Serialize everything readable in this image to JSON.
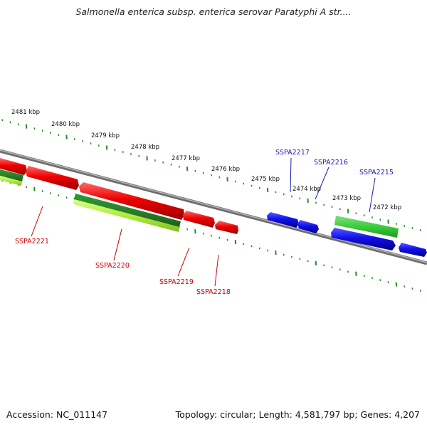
{
  "title": "Salmonella enterica subsp. enterica serovar Paratyphi A str....",
  "accession": "Accession: NC_011147",
  "summary": "Topology: circular; Length: 4,581,797 bp; Genes: 4,207",
  "colors": {
    "backbone": "#8a8a8a",
    "ticks": "#2a8a2a",
    "forward_gene": "#e00000",
    "reverse_gene": "#1414e0",
    "green_track": "#3cc43c",
    "light_green_track": "#a8ec40",
    "label_red": "#cc0000",
    "label_blue": "#1a1aaa"
  },
  "scale_labels": [
    "2481 kbp",
    "2480 kbp",
    "2479 kbp",
    "2478 kbp",
    "2477 kbp",
    "2476 kbp",
    "2475 kbp",
    "2474 kbp",
    "2473 kbp",
    "2472 kbp"
  ],
  "gene_labels": {
    "ssp2221": "SSPA2221",
    "ssp2220": "SSPA2220",
    "ssp2219": "SSPA2219",
    "ssp2218": "SSPA2218",
    "ssp2217": "SSPA2217",
    "ssp2216": "SSPA2216",
    "ssp2215": "SSPA2215"
  }
}
